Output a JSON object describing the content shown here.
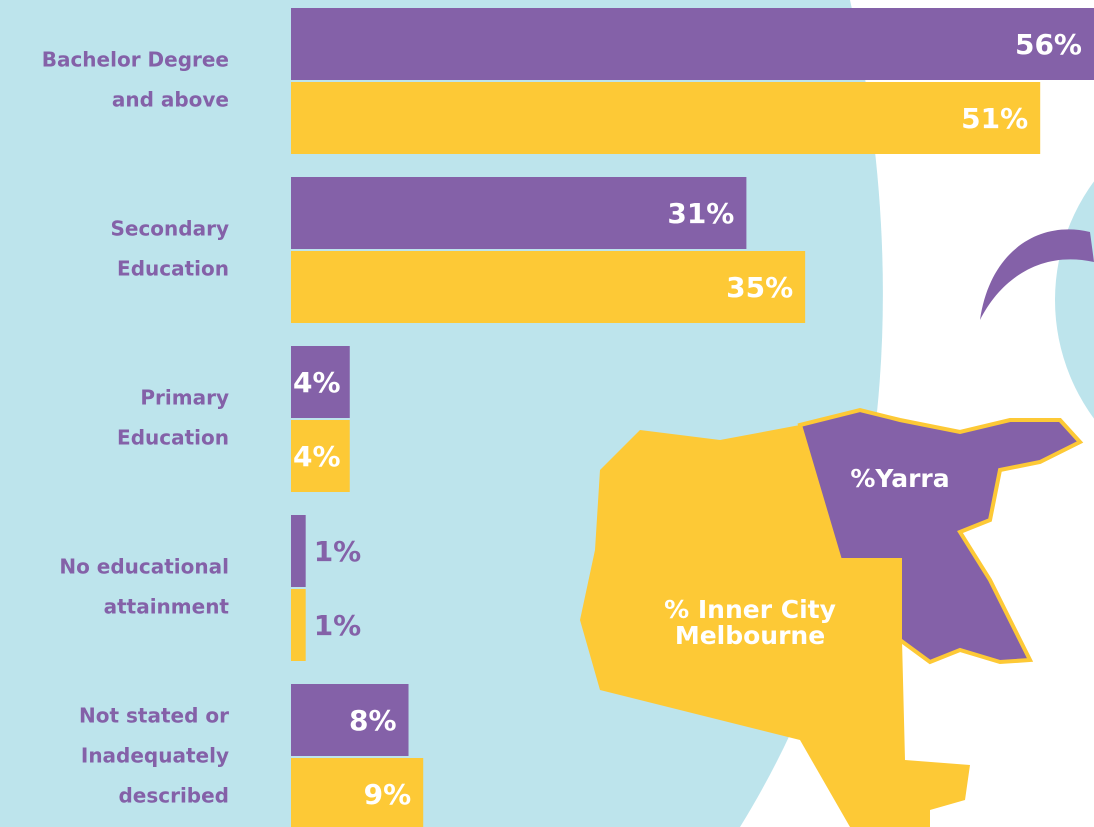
{
  "chart_data": {
    "type": "bar",
    "orientation": "horizontal",
    "categories": [
      [
        "Bachelor Degree",
        "and above"
      ],
      [
        "Secondary",
        "Education"
      ],
      [
        "Primary",
        "Education"
      ],
      [
        "No educational",
        "attainment"
      ],
      [
        "Not stated or",
        "Inadequately",
        "described"
      ]
    ],
    "series": [
      {
        "name": "%Yarra",
        "color": "#8461a8",
        "values": [
          56,
          31,
          4,
          1,
          8
        ],
        "value_labels": [
          "56%",
          "31%",
          "4%",
          "1%",
          "8%"
        ]
      },
      {
        "name": "% Inner City Melbourne",
        "color": "#fdc936",
        "values": [
          51,
          35,
          4,
          1,
          9
        ],
        "value_labels": [
          "51%",
          "35%",
          "4%",
          "1%",
          "9%"
        ]
      }
    ]
  }
}
